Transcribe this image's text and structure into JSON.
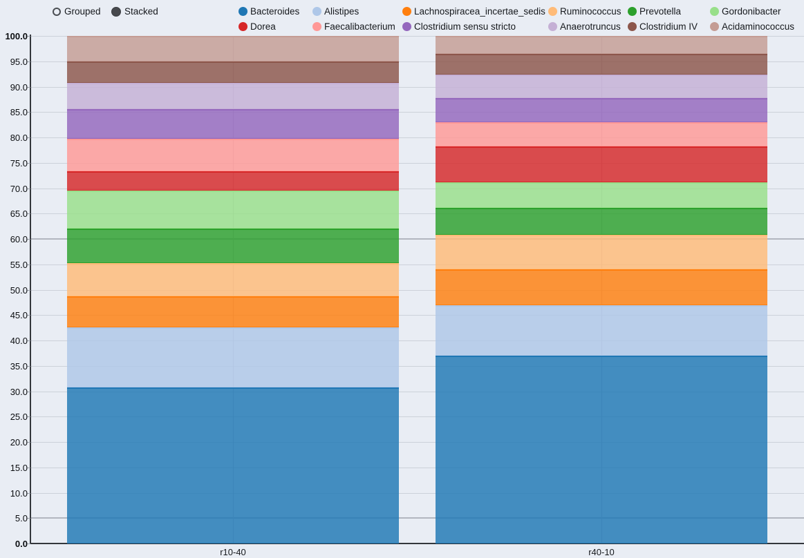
{
  "controls": {
    "options": [
      {
        "label": "Grouped",
        "selected": false
      },
      {
        "label": "Stacked",
        "selected": true
      }
    ]
  },
  "chart_data": {
    "type": "bar",
    "stacked": true,
    "orientation": "vertical",
    "title": "",
    "xlabel": "",
    "ylabel": "",
    "categories": [
      "r10-40",
      "r40-10"
    ],
    "series": [
      {
        "name": "Bacteroides",
        "color": "#1f77b4",
        "values": [
          30.8,
          37.0
        ]
      },
      {
        "name": "Alistipes",
        "color": "#aec7e8",
        "values": [
          11.8,
          10.0
        ]
      },
      {
        "name": "Lachnospiracea_incertae_sedis",
        "color": "#ff7f0e",
        "values": [
          6.1,
          7.0
        ]
      },
      {
        "name": "Ruminococcus",
        "color": "#ffbb78",
        "values": [
          6.5,
          6.8
        ]
      },
      {
        "name": "Prevotella",
        "color": "#2ca02c",
        "values": [
          6.8,
          5.3
        ]
      },
      {
        "name": "Gordonibacter",
        "color": "#98df8a",
        "values": [
          7.5,
          5.0
        ]
      },
      {
        "name": "Dorea",
        "color": "#d62728",
        "values": [
          3.9,
          7.1
        ]
      },
      {
        "name": "Faecalibacterium",
        "color": "#ff9896",
        "values": [
          6.3,
          4.8
        ]
      },
      {
        "name": "Clostridium sensu stricto",
        "color": "#9467bd",
        "values": [
          5.9,
          4.8
        ]
      },
      {
        "name": "Anaerotruncus",
        "color": "#c5b0d5",
        "values": [
          5.1,
          4.6
        ]
      },
      {
        "name": "Clostridium IV",
        "color": "#8c564b",
        "values": [
          4.3,
          4.1
        ]
      },
      {
        "name": "Acidaminococcus",
        "color": "#c49c94",
        "values": [
          5.0,
          3.5
        ]
      }
    ],
    "ylim": [
      0,
      100
    ],
    "ytick_step": 5,
    "ytick_decimals": 1,
    "bold_tick_values": [
      0,
      100
    ],
    "emphasized_gridlines": [
      60,
      5
    ],
    "grid": true,
    "legend_position": "top",
    "legend_rows": 2
  },
  "colors": {
    "background": "#e9edf4",
    "gridline": "#ccd1d9",
    "gridline_emphasized": "#b2b6bf",
    "axis": "#33363b",
    "text": "#15181c"
  }
}
